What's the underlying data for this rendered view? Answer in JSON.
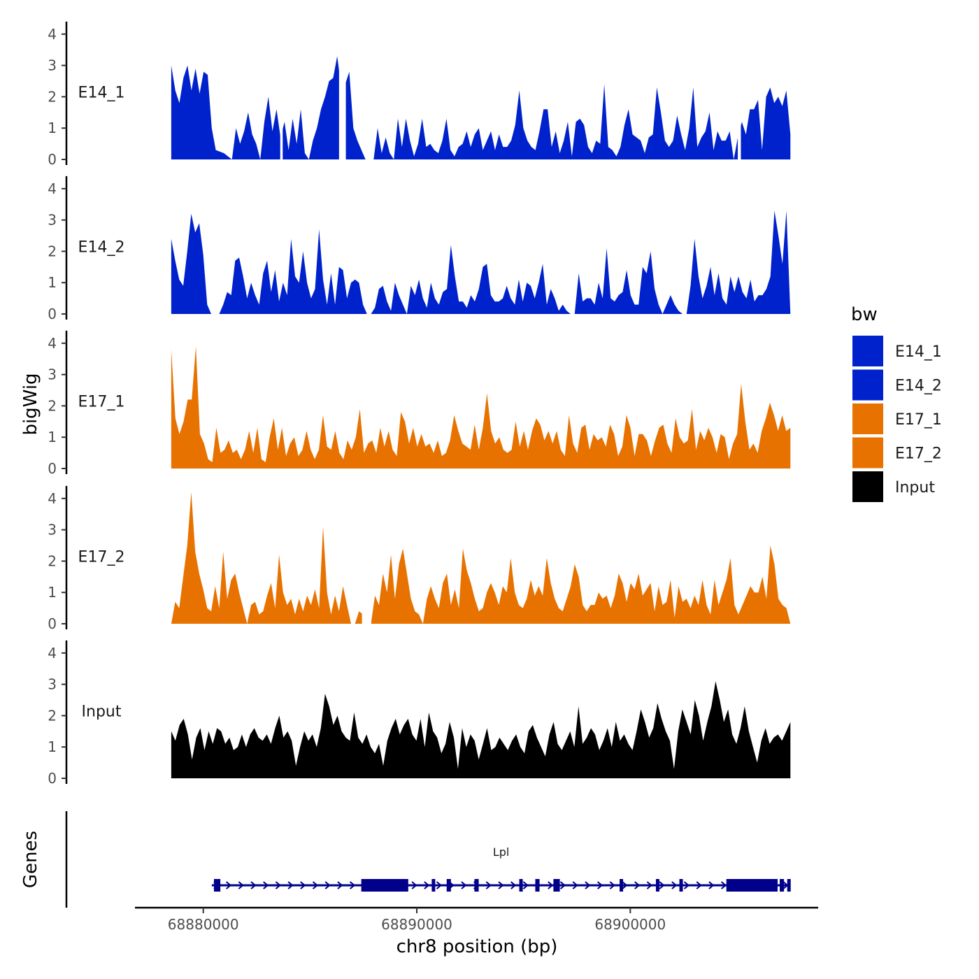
{
  "chart_data": {
    "type": "area",
    "ylabel": "bigWig",
    "xlabel": "chr8 position (bp)",
    "genes_label": "Genes",
    "ylim": [
      0,
      4.2
    ],
    "yticks": [
      "0",
      "1",
      "2",
      "3",
      "4"
    ],
    "xlim": [
      68876800,
      68908800
    ],
    "xticks": [
      {
        "value": 68880000,
        "label": "68880000"
      },
      {
        "value": 68890000,
        "label": "68890000"
      },
      {
        "value": 68900000,
        "label": "68900000"
      }
    ],
    "legend": {
      "title": "bw",
      "entries": [
        {
          "name": "E14_1",
          "color": "#0022CC"
        },
        {
          "name": "E14_2",
          "color": "#0022CC"
        },
        {
          "name": "E17_1",
          "color": "#E87200"
        },
        {
          "name": "E17_2",
          "color": "#E87200"
        },
        {
          "name": "Input",
          "color": "#000000"
        }
      ]
    },
    "x_start": 68878500,
    "x_end": 68907500,
    "series": [
      {
        "name": "E14_1",
        "color": "#0022CC",
        "values": [
          3.0,
          2.2,
          1.8,
          2.6,
          3.0,
          2.2,
          2.9,
          2.1,
          2.8,
          2.7,
          1.0,
          0.3,
          0.25,
          0.2,
          0.1,
          0,
          1.0,
          0.5,
          0.9,
          1.5,
          0.8,
          0.5,
          0,
          1.2,
          2.0,
          0.9,
          1.6,
          0.7,
          1.2,
          0.3,
          1.3,
          0.5,
          1.6,
          0.2,
          0,
          0.6,
          1.0,
          1.6,
          2.0,
          2.5,
          2.6,
          3.3,
          2.3,
          2.4,
          2.8,
          1.0,
          0.6,
          0.3,
          0,
          0,
          0,
          1.0,
          0.2,
          0.7,
          0.2,
          0,
          1.3,
          0.4,
          1.3,
          0.6,
          0.1,
          0.5,
          1.3,
          0.4,
          0.5,
          0.3,
          0.2,
          0.6,
          1.3,
          0.3,
          0.1,
          0.4,
          0.5,
          0.9,
          0.4,
          0.8,
          1.0,
          0.3,
          0.6,
          0.9,
          0.3,
          0.8,
          0.4,
          0.4,
          0.6,
          1.1,
          2.2,
          1.0,
          0.6,
          0.4,
          0.3,
          0.9,
          1.6,
          1.6,
          0.4,
          0.9,
          0.2,
          0.6,
          1.2,
          0.1,
          1.2,
          1.3,
          1.1,
          0.4,
          0.2,
          0.6,
          0.5,
          2.4,
          0.4,
          0.3,
          0.1,
          0.4,
          1.1,
          1.6,
          0.8,
          0.7,
          0.6,
          0.2,
          0.7,
          0.8,
          2.3,
          1.5,
          0.6,
          0.4,
          0.6,
          1.4,
          0.8,
          0.3,
          1.0,
          2.3,
          0.4,
          0.7,
          0.9,
          1.5,
          0.3,
          0.9,
          0.6,
          0.6,
          0.9,
          0,
          0.7,
          1.2,
          0.8,
          1.6,
          1.6,
          1.9,
          0.3,
          2.0,
          2.3,
          1.8,
          2.0,
          1.7,
          2.2,
          0.8
        ],
        "gaps": [
          [
            0.176,
            0.18
          ],
          [
            0.271,
            0.282
          ],
          [
            0.915,
            0.92
          ]
        ]
      },
      {
        "name": "E14_2",
        "color": "#0022CC",
        "values": [
          2.4,
          1.7,
          1.1,
          0.9,
          2.0,
          3.2,
          2.6,
          2.9,
          1.9,
          0.3,
          0,
          0,
          0,
          0.3,
          0.7,
          0.6,
          1.7,
          1.8,
          1.2,
          0.5,
          1.0,
          0.6,
          0.3,
          1.3,
          1.7,
          0.7,
          1.4,
          0.4,
          1.0,
          0.6,
          2.4,
          1.2,
          1.0,
          2.0,
          1.0,
          0.5,
          0.8,
          2.7,
          1.1,
          0.3,
          1.3,
          0.3,
          1.5,
          1.4,
          0.5,
          1.0,
          1.1,
          1.0,
          0.3,
          0,
          0,
          0.2,
          0.8,
          0.9,
          0.4,
          0.1,
          1.0,
          0.6,
          0.3,
          0,
          0.9,
          0.6,
          1.1,
          0.5,
          0.2,
          1.0,
          0.5,
          0.3,
          0.7,
          0.8,
          2.2,
          1.2,
          0.4,
          0.4,
          0.2,
          0.6,
          0.4,
          0.8,
          1.5,
          1.6,
          0.6,
          0.4,
          0.4,
          0.5,
          0.9,
          0.5,
          0.3,
          1.1,
          0.4,
          1.0,
          0.9,
          0.5,
          1.0,
          1.6,
          0.3,
          0.8,
          0.5,
          0.1,
          0.3,
          0.1,
          0,
          0,
          1.3,
          0.4,
          0.5,
          0.5,
          0.3,
          1.0,
          0.5,
          2.1,
          0.5,
          0.4,
          0.6,
          0.7,
          1.4,
          0.6,
          0.3,
          0.3,
          1.5,
          1.3,
          2.0,
          0.8,
          0.3,
          0,
          0.3,
          0.6,
          0.3,
          0.1,
          0,
          0,
          0.9,
          2.4,
          1.2,
          0.5,
          0.9,
          1.5,
          0.6,
          1.3,
          0.5,
          0.3,
          1.2,
          0.7,
          1.2,
          0.7,
          0.5,
          1.1,
          0.4,
          0.6,
          0.6,
          0.8,
          1.2,
          3.3,
          2.5,
          1.6,
          3.3,
          0
        ]
      },
      {
        "name": "E17_1",
        "color": "#E87200",
        "values": [
          3.8,
          1.6,
          1.1,
          1.5,
          2.2,
          2.2,
          3.9,
          1.1,
          0.8,
          0.3,
          0.2,
          1.3,
          0.5,
          0.6,
          0.9,
          0.5,
          0.6,
          0.3,
          0.6,
          1.2,
          0.5,
          1.3,
          0.3,
          0.2,
          1.0,
          1.6,
          0.6,
          1.3,
          0.4,
          0.8,
          1.0,
          0.4,
          0.6,
          1.2,
          0.6,
          0.3,
          0.6,
          1.7,
          0.7,
          0.6,
          1.2,
          0.5,
          0.3,
          0.9,
          0.6,
          1.0,
          1.9,
          0.5,
          0.8,
          0.9,
          0.5,
          1.3,
          0.7,
          1.2,
          0.6,
          0.4,
          1.8,
          1.5,
          0.8,
          1.3,
          0.7,
          1.1,
          0.7,
          0.8,
          0.5,
          0.9,
          0.4,
          0.5,
          0.9,
          1.7,
          1.2,
          0.8,
          0.7,
          0.6,
          1.4,
          0.6,
          1.3,
          2.4,
          1.2,
          0.8,
          1.0,
          0.6,
          0.5,
          0.6,
          1.5,
          0.7,
          1.2,
          0.6,
          1.2,
          1.6,
          1.4,
          0.9,
          1.2,
          0.8,
          1.2,
          0.6,
          0.4,
          1.7,
          0.8,
          0.5,
          1.3,
          1.4,
          0.6,
          1.1,
          0.9,
          1.0,
          0.7,
          1.4,
          1.1,
          0.4,
          0.7,
          1.7,
          1.3,
          0.4,
          1.1,
          1.1,
          0.9,
          0.4,
          0.9,
          1.3,
          1.4,
          0.8,
          0.5,
          1.6,
          1.0,
          0.8,
          0.9,
          1.9,
          0.6,
          1.2,
          0.9,
          1.3,
          1.0,
          0.5,
          1.1,
          1.0,
          0.3,
          0.8,
          1.1,
          2.7,
          1.5,
          0.6,
          0.8,
          0.5,
          1.2,
          1.6,
          2.1,
          1.7,
          1.2,
          1.7,
          1.2,
          1.3
        ]
      },
      {
        "name": "E17_2",
        "color": "#E87200",
        "values": [
          0,
          0.7,
          0.5,
          1.5,
          2.5,
          4.2,
          2.3,
          1.6,
          1.1,
          0.5,
          0.4,
          1.2,
          0.5,
          2.3,
          0.8,
          1.4,
          1.6,
          1.0,
          0.5,
          0,
          0.6,
          0.7,
          0.3,
          0.4,
          0.9,
          1.3,
          0.5,
          2.2,
          1.0,
          0.6,
          0.8,
          0.3,
          0.8,
          0.4,
          0.9,
          0.6,
          1.1,
          0.5,
          3.1,
          1.0,
          0.3,
          0.9,
          0.4,
          1.2,
          0.6,
          0,
          0,
          0.4,
          0.3,
          0,
          0,
          0.9,
          0.6,
          1.6,
          1.0,
          2.2,
          0.8,
          1.9,
          2.4,
          1.6,
          0.8,
          0.4,
          0.3,
          0,
          0.8,
          1.2,
          0.8,
          0.5,
          1.3,
          1.6,
          0.6,
          1.1,
          0.5,
          2.4,
          1.7,
          1.3,
          0.8,
          0.4,
          0.5,
          1.0,
          1.3,
          1.0,
          0.6,
          1.2,
          1.0,
          2.1,
          1.0,
          0.6,
          0.5,
          0.8,
          1.4,
          0.9,
          1.2,
          0.9,
          2.1,
          1.3,
          0.8,
          0.5,
          0.4,
          0.8,
          1.2,
          1.9,
          1.5,
          0.6,
          0.4,
          0.6,
          0.6,
          1.0,
          0.8,
          0.9,
          0.5,
          0.9,
          1.6,
          1.3,
          0.7,
          1.3,
          1.1,
          1.6,
          0.9,
          1.1,
          1.3,
          0.4,
          1.2,
          0.6,
          0.7,
          1.4,
          0.2,
          1.2,
          0.7,
          0.8,
          0.5,
          0.9,
          0.6,
          1.4,
          0.6,
          0.3,
          1.4,
          0.6,
          1.0,
          1.4,
          2.1,
          0.6,
          0.3,
          0.6,
          0.9,
          1.2,
          1.0,
          1.0,
          1.5,
          0.8,
          2.5,
          1.9,
          0.8,
          0.6,
          0.5,
          0
        ],
        "gaps": [
          [
            0.308,
            0.323
          ]
        ]
      },
      {
        "name": "Input",
        "color": "#000000",
        "values": [
          1.5,
          1.2,
          1.7,
          1.9,
          1.4,
          0.6,
          1.3,
          1.6,
          0.9,
          1.5,
          1.1,
          1.6,
          1.5,
          1.1,
          1.3,
          0.9,
          1.0,
          1.4,
          1.0,
          1.4,
          1.6,
          1.3,
          1.2,
          1.4,
          1.1,
          1.6,
          2.0,
          1.3,
          1.5,
          1.2,
          0.4,
          1.0,
          1.5,
          1.2,
          1.4,
          1.0,
          1.6,
          2.7,
          2.3,
          1.7,
          2.0,
          1.5,
          1.3,
          1.2,
          2.1,
          1.3,
          1.1,
          1.4,
          1.0,
          0.8,
          1.1,
          0.4,
          1.2,
          1.6,
          1.9,
          1.4,
          1.7,
          1.9,
          1.4,
          1.2,
          1.9,
          1.0,
          2.1,
          1.5,
          1.3,
          0.8,
          1.1,
          1.8,
          1.3,
          0.3,
          1.6,
          1.0,
          1.4,
          1.2,
          0.6,
          1.1,
          1.6,
          0.9,
          1.0,
          1.3,
          1.1,
          0.9,
          1.2,
          1.4,
          1.0,
          0.8,
          1.5,
          1.7,
          1.3,
          1.0,
          0.7,
          1.4,
          1.8,
          1.1,
          0.9,
          1.2,
          1.5,
          1.0,
          2.3,
          1.1,
          1.3,
          1.6,
          1.4,
          0.9,
          1.2,
          1.6,
          1.0,
          1.8,
          1.2,
          1.4,
          1.1,
          0.9,
          1.5,
          2.2,
          1.8,
          1.3,
          1.6,
          2.4,
          1.9,
          1.5,
          1.2,
          0.3,
          1.5,
          2.2,
          1.8,
          1.4,
          2.5,
          2.0,
          1.2,
          1.8,
          2.3,
          3.1,
          2.5,
          1.8,
          2.2,
          1.4,
          1.1,
          1.6,
          2.3,
          1.5,
          1.0,
          0.5,
          1.2,
          1.6,
          1.1,
          1.3,
          1.4,
          1.2,
          1.5,
          1.8
        ]
      }
    ],
    "gene": {
      "name": "Lpl",
      "color": "#00008B",
      "start": 68880400,
      "end": 68907500,
      "exons": [
        {
          "start": 68880500,
          "end": 68880800
        },
        {
          "start": 68887400,
          "end": 68889600
        },
        {
          "start": 68890700,
          "end": 68890850
        },
        {
          "start": 68891400,
          "end": 68891600
        },
        {
          "start": 68892700,
          "end": 68892900
        },
        {
          "start": 68894800,
          "end": 68894950
        },
        {
          "start": 68895550,
          "end": 68895750
        },
        {
          "start": 68896400,
          "end": 68896700
        },
        {
          "start": 68899500,
          "end": 68899600
        },
        {
          "start": 68901200,
          "end": 68901350
        },
        {
          "start": 68902300,
          "end": 68902450
        },
        {
          "start": 68904500,
          "end": 68906900
        },
        {
          "start": 68907000,
          "end": 68907200
        },
        {
          "start": 68907350,
          "end": 68907500
        }
      ]
    }
  }
}
